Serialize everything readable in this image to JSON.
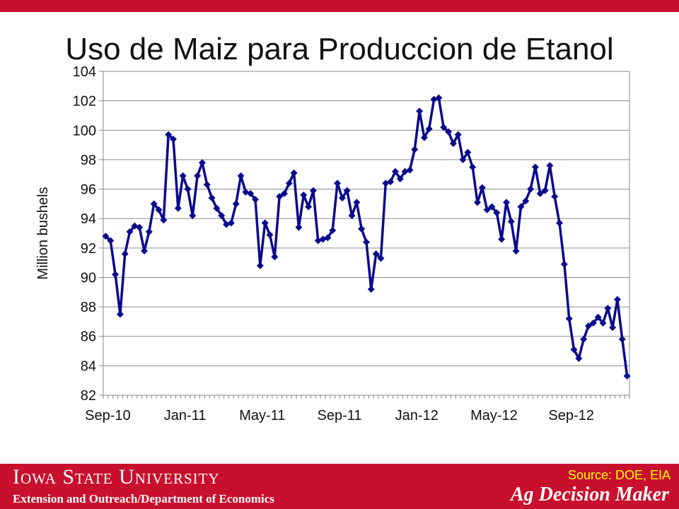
{
  "title": "Uso de Maiz para Produccion de Etanol",
  "chart_data": {
    "type": "line",
    "ylabel": "Million bushels",
    "xlabel": "",
    "ylim": [
      82,
      104
    ],
    "yticks": [
      82,
      84,
      86,
      88,
      90,
      92,
      94,
      96,
      98,
      100,
      102,
      104
    ],
    "xtick_labels": [
      "Sep-10",
      "Jan-11",
      "May-11",
      "Sep-11",
      "Jan-12",
      "May-12",
      "Sep-12"
    ],
    "grid": true,
    "series_color": "#0a0a8c",
    "series": [
      {
        "values": [
          92.8,
          92.5,
          90.2,
          87.5,
          91.6,
          93.1,
          93.5,
          93.4,
          91.8,
          93.1,
          95.0,
          94.6,
          93.9,
          99.7,
          99.4,
          94.7,
          96.9,
          96.0,
          94.2,
          96.9,
          97.8,
          96.3,
          95.4,
          94.7,
          94.2,
          93.6,
          93.7,
          95.0,
          96.9,
          95.8,
          95.7,
          95.3,
          90.8,
          93.7,
          92.9,
          91.4,
          95.5,
          95.7,
          96.4,
          97.1,
          93.4,
          95.6,
          94.8,
          95.9,
          92.5,
          92.6,
          92.7,
          93.2,
          96.4,
          95.4,
          95.9,
          94.2,
          95.1,
          93.3,
          92.4,
          89.2,
          91.6,
          91.3,
          96.4,
          96.5,
          97.2,
          96.7,
          97.2,
          97.3,
          98.7,
          101.3,
          99.5,
          100.1,
          102.1,
          102.2,
          100.2,
          99.9,
          99.1,
          99.7,
          98.0,
          98.5,
          97.5,
          95.1,
          96.1,
          94.6,
          94.8,
          94.4,
          92.6,
          95.1,
          93.8,
          91.8,
          94.8,
          95.2,
          96.0,
          97.5,
          95.7,
          95.9,
          97.6,
          95.5,
          93.7,
          90.9,
          87.2,
          85.1,
          84.5,
          85.8,
          86.7,
          86.9,
          87.3,
          86.9,
          87.9,
          86.6,
          88.5,
          85.8,
          83.3
        ]
      }
    ]
  },
  "footer": {
    "university": "Iowa State University",
    "department": "Extension and Outreach/Department  of Economics",
    "source": "Source: DOE, EIA",
    "brand": "Ag Decision Maker"
  }
}
